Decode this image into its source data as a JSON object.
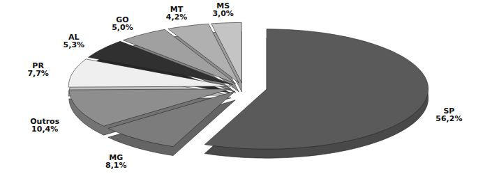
{
  "chart_data": {
    "type": "pie",
    "categories": [
      "SP",
      "MG",
      "Outros",
      "PR",
      "AL",
      "GO",
      "MT",
      "MS"
    ],
    "values": [
      56.2,
      8.1,
      10.4,
      7.7,
      5.3,
      5.0,
      4.2,
      3.0
    ],
    "value_labels": [
      "56,2%",
      "8,1%",
      "10,4%",
      "7,7%",
      "5,3%",
      "5,0%",
      "4,2%",
      "3,0%"
    ],
    "colors": [
      "#5a5a5a",
      "#7c7c7c",
      "#8e8e8e",
      "#efefef",
      "#303030",
      "#a0a0a0",
      "#b0b0b0",
      "#c4c4c4"
    ],
    "data_labels": true,
    "tick_labels": false
  }
}
